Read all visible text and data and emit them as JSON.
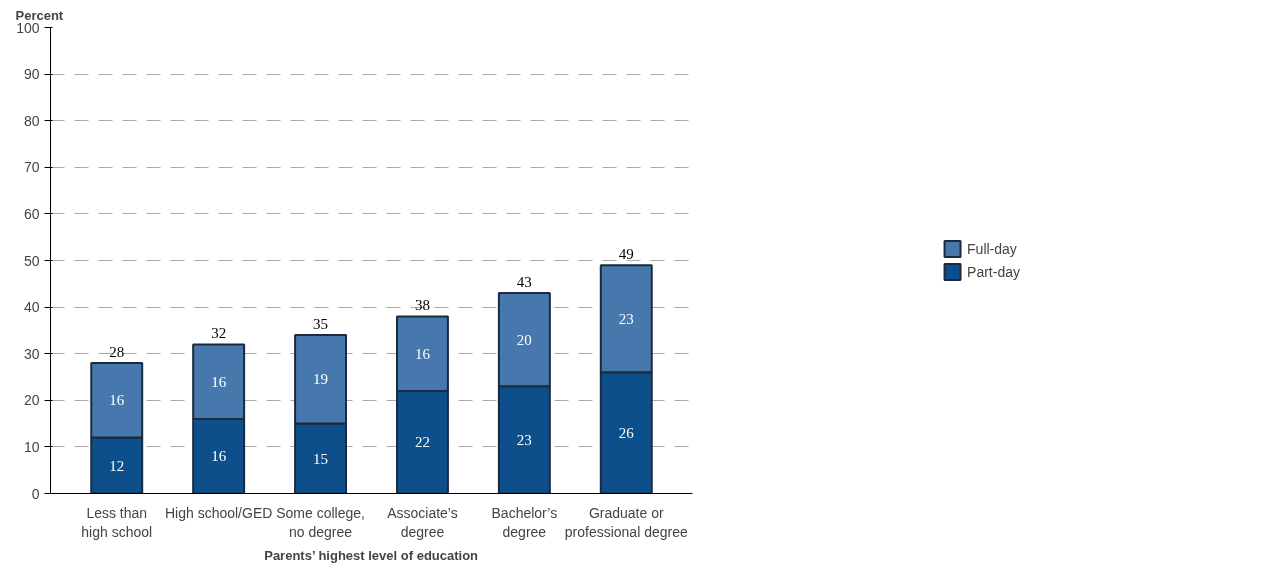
{
  "chart_data": {
    "type": "bar",
    "stacked": true,
    "xlabel": "Parents’ highest level of education",
    "ylabel": "Percent",
    "categories": [
      "Less than\nhigh school",
      "High school/GED",
      "Some college,\nno degree",
      "Associate’s\ndegree",
      "Bachelor’s\ndegree",
      "Graduate or\nprofessional degree"
    ],
    "series": [
      {
        "name": "Part-day",
        "color": "#0d4f8b",
        "values": [
          12,
          16,
          15,
          22,
          23,
          26
        ]
      },
      {
        "name": "Full-day",
        "color": "#4677ad",
        "values": [
          16,
          16,
          19,
          16,
          20,
          23
        ]
      }
    ],
    "totals": [
      "28",
      "32",
      "35",
      "38",
      "43",
      "49"
    ],
    "data_labels": true,
    "ylim": [
      0,
      100
    ],
    "yticks": [
      0,
      10,
      20,
      30,
      40,
      50,
      60,
      70,
      80,
      90,
      100
    ],
    "grid": "y",
    "legend": "right"
  }
}
